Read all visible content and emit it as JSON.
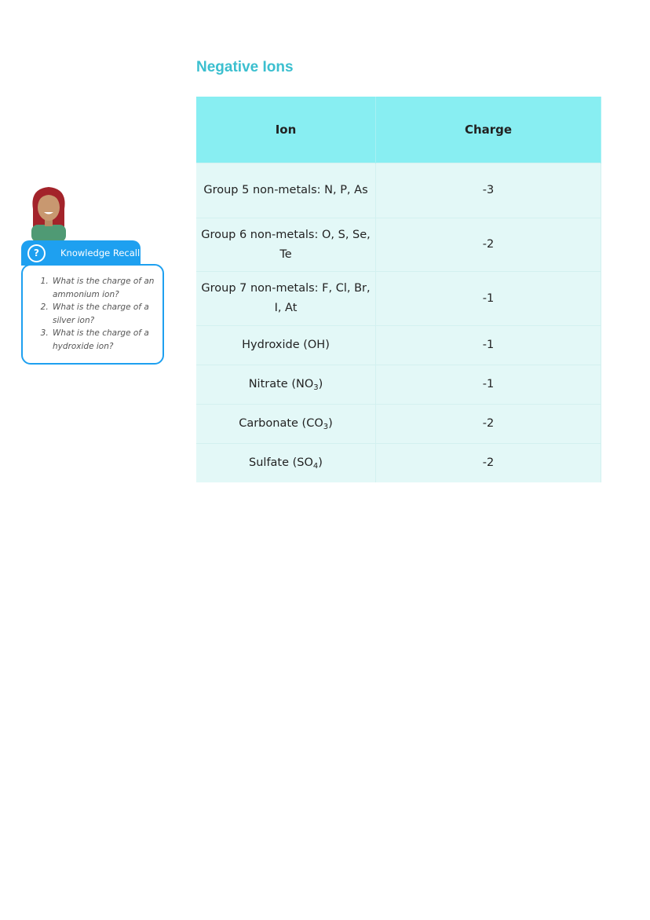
{
  "heading": "Negative Ions",
  "table": {
    "headers": [
      "Ion",
      "Charge"
    ],
    "rows": [
      {
        "ion": "Group 5 non-metals: N, P, As",
        "sub": "",
        "after": "",
        "charge": "-3"
      },
      {
        "ion": "Group 6 non-metals: O, S, Se, Te",
        "sub": "",
        "after": "",
        "charge": "-2"
      },
      {
        "ion": "Group 7 non-metals: F, Cl, Br, I, At",
        "sub": "",
        "after": "",
        "charge": "-1"
      },
      {
        "ion": "Hydroxide (OH)",
        "sub": "",
        "after": "",
        "charge": "-1"
      },
      {
        "ion": "Nitrate (NO",
        "sub": "3",
        "after": ")",
        "charge": "-1"
      },
      {
        "ion": "Carbonate (CO",
        "sub": "3",
        "after": ")",
        "charge": "-2"
      },
      {
        "ion": "Sulfate (SO",
        "sub": "4",
        "after": ")",
        "charge": "-2"
      }
    ]
  },
  "knowledge_recall": {
    "icon": "question-mark-icon",
    "icon_glyph": "?",
    "title": "Knowledge Recall",
    "questions": [
      "What is the charge of an ammonium ion?",
      "What is the charge of a silver ion?",
      "What is the charge of a hydroxide ion?"
    ]
  },
  "colors": {
    "heading": "#3bbfcf",
    "header_bg": "#88eef2",
    "row_bg": "#e3f8f7",
    "accent": "#1ea0f0"
  }
}
